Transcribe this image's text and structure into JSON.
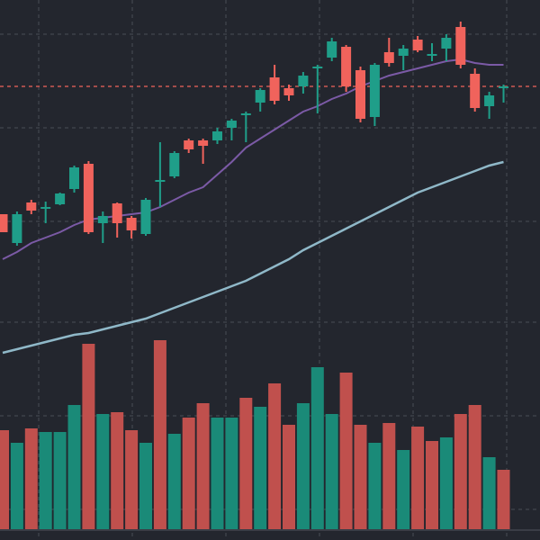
{
  "colors": {
    "background": "#23262e",
    "grid": "#4a4d56",
    "up": "#1f9e89",
    "down": "#f0635c",
    "volume_up": "#1a8a78",
    "volume_down": "#c0504d",
    "ma_fast": "#7b5aa6",
    "ma_slow": "#8fb8c8",
    "price_line": "#f0635c"
  },
  "chart_data": {
    "type": "candlestick",
    "grid": true,
    "price_range": [
      0,
      600
    ],
    "price_line_level": 504,
    "candles": [
      {
        "open": 362,
        "close": 342,
        "high": 362,
        "low": 342
      },
      {
        "open": 330,
        "close": 362,
        "high": 365,
        "low": 327
      },
      {
        "open": 375,
        "close": 366,
        "high": 378,
        "low": 362
      },
      {
        "open": 369,
        "close": 370,
        "high": 376,
        "low": 352
      },
      {
        "open": 373,
        "close": 385,
        "high": 386,
        "low": 372
      },
      {
        "open": 390,
        "close": 414,
        "high": 416,
        "low": 386
      },
      {
        "open": 418,
        "close": 342,
        "high": 421,
        "low": 340
      },
      {
        "open": 352,
        "close": 360,
        "high": 365,
        "low": 330
      },
      {
        "open": 374,
        "close": 352,
        "high": 375,
        "low": 336
      },
      {
        "open": 358,
        "close": 344,
        "high": 360,
        "low": 335
      },
      {
        "open": 340,
        "close": 378,
        "high": 380,
        "low": 338
      },
      {
        "open": 400,
        "close": 400,
        "high": 442,
        "low": 370
      },
      {
        "open": 404,
        "close": 430,
        "high": 432,
        "low": 402
      },
      {
        "open": 444,
        "close": 434,
        "high": 446,
        "low": 430
      },
      {
        "open": 444,
        "close": 438,
        "high": 446,
        "low": 418
      },
      {
        "open": 444,
        "close": 454,
        "high": 458,
        "low": 440
      },
      {
        "open": 458,
        "close": 466,
        "high": 468,
        "low": 444
      },
      {
        "open": 474,
        "close": 474,
        "high": 476,
        "low": 442
      },
      {
        "open": 486,
        "close": 500,
        "high": 502,
        "low": 476
      },
      {
        "open": 514,
        "close": 488,
        "high": 528,
        "low": 484
      },
      {
        "open": 502,
        "close": 494,
        "high": 506,
        "low": 488
      },
      {
        "open": 504,
        "close": 516,
        "high": 520,
        "low": 496
      },
      {
        "open": 526,
        "close": 526,
        "high": 528,
        "low": 474
      },
      {
        "open": 536,
        "close": 554,
        "high": 558,
        "low": 532
      },
      {
        "open": 548,
        "close": 504,
        "high": 550,
        "low": 498
      },
      {
        "open": 522,
        "close": 468,
        "high": 526,
        "low": 464
      },
      {
        "open": 470,
        "close": 528,
        "high": 530,
        "low": 460
      },
      {
        "open": 542,
        "close": 530,
        "high": 558,
        "low": 526
      },
      {
        "open": 538,
        "close": 546,
        "high": 550,
        "low": 522
      },
      {
        "open": 556,
        "close": 544,
        "high": 560,
        "low": 542
      },
      {
        "open": 540,
        "close": 540,
        "high": 552,
        "low": 532
      },
      {
        "open": 546,
        "close": 558,
        "high": 562,
        "low": 532
      },
      {
        "open": 570,
        "close": 528,
        "high": 576,
        "low": 524
      },
      {
        "open": 518,
        "close": 480,
        "high": 524,
        "low": 476
      },
      {
        "open": 482,
        "close": 494,
        "high": 498,
        "low": 468
      },
      {
        "open": 504,
        "close": 504,
        "high": 506,
        "low": 486
      }
    ],
    "volume_range": [
      0,
      100
    ],
    "volumes": [
      {
        "value": 55,
        "up": false
      },
      {
        "value": 48,
        "up": true
      },
      {
        "value": 56,
        "up": false
      },
      {
        "value": 54,
        "up": true
      },
      {
        "value": 54,
        "up": true
      },
      {
        "value": 69,
        "up": true
      },
      {
        "value": 103,
        "up": false
      },
      {
        "value": 64,
        "up": true
      },
      {
        "value": 65,
        "up": false
      },
      {
        "value": 55,
        "up": false
      },
      {
        "value": 48,
        "up": true
      },
      {
        "value": 105,
        "up": false
      },
      {
        "value": 53,
        "up": true
      },
      {
        "value": 62,
        "up": false
      },
      {
        "value": 70,
        "up": false
      },
      {
        "value": 62,
        "up": true
      },
      {
        "value": 62,
        "up": true
      },
      {
        "value": 73,
        "up": false
      },
      {
        "value": 68,
        "up": true
      },
      {
        "value": 81,
        "up": false
      },
      {
        "value": 58,
        "up": false
      },
      {
        "value": 70,
        "up": true
      },
      {
        "value": 90,
        "up": true
      },
      {
        "value": 64,
        "up": true
      },
      {
        "value": 87,
        "up": false
      },
      {
        "value": 58,
        "up": false
      },
      {
        "value": 48,
        "up": true
      },
      {
        "value": 59,
        "up": false
      },
      {
        "value": 44,
        "up": true
      },
      {
        "value": 57,
        "up": false
      },
      {
        "value": 49,
        "up": false
      },
      {
        "value": 51,
        "up": true
      },
      {
        "value": 64,
        "up": false
      },
      {
        "value": 69,
        "up": false
      },
      {
        "value": 40,
        "up": true
      },
      {
        "value": 33,
        "up": false
      }
    ],
    "ma_fast": [
      312,
      320,
      330,
      336,
      342,
      350,
      356,
      358,
      360,
      362,
      364,
      370,
      378,
      386,
      392,
      406,
      420,
      436,
      446,
      456,
      466,
      476,
      482,
      490,
      496,
      504,
      510,
      516,
      520,
      524,
      528,
      532,
      534,
      530,
      528,
      528
    ],
    "ma_slow": [
      208,
      212,
      216,
      220,
      224,
      228,
      230,
      234,
      238,
      242,
      246,
      252,
      258,
      264,
      270,
      276,
      282,
      288,
      296,
      304,
      312,
      322,
      330,
      338,
      346,
      354,
      362,
      370,
      378,
      386,
      392,
      398,
      404,
      410,
      416,
      420
    ]
  }
}
